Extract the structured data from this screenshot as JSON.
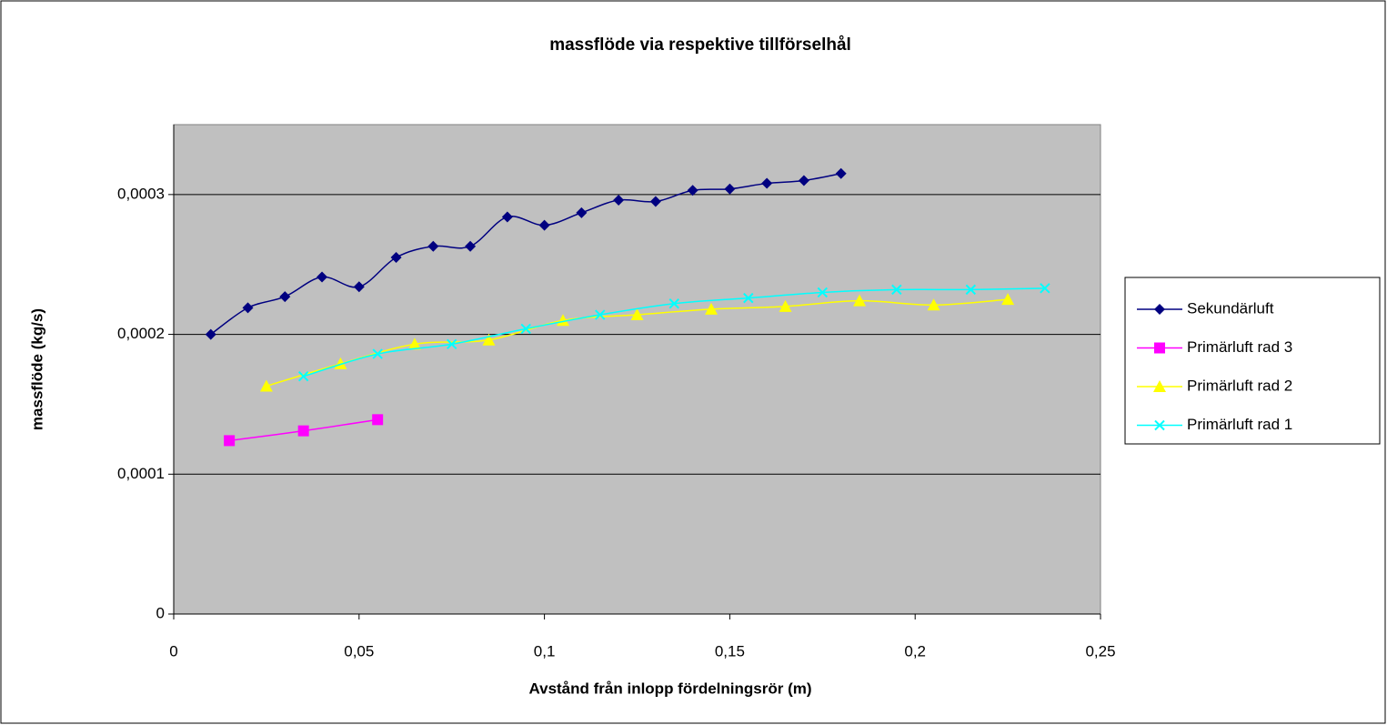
{
  "chart_data": {
    "type": "line",
    "title": "massflöde  via respektive  tillförselhål",
    "x_label": "Avstånd från inlopp fördelningsrör (m)",
    "y_label": "massflöde (kg/s)",
    "xlim": [
      0,
      0.25
    ],
    "xticks": [
      0,
      {
        "value": 0.05,
        "label": "0,05"
      },
      {
        "value": 0.1,
        "label": "0,1"
      },
      {
        "value": 0.15,
        "label": "0,15"
      },
      {
        "value": 0.2,
        "label": "0,2"
      },
      {
        "value": 0.25,
        "label": "0,25"
      }
    ],
    "ylim": [
      0,
      0.00035
    ],
    "yticks": [
      0,
      {
        "value": 0.0001,
        "label": "0,0001"
      },
      {
        "value": 0.0002,
        "label": "0,0002"
      },
      {
        "value": 0.0003,
        "label": "0,0003"
      }
    ],
    "grid": true,
    "smooth": true,
    "legend": "right",
    "background": "#c0c0c0",
    "series": [
      {
        "name": "Sekundärluft",
        "color": "#000080",
        "marker": "diamond",
        "x": [
          0.01,
          0.02,
          0.03,
          0.04,
          0.05,
          0.06,
          0.07,
          0.08,
          0.09,
          0.1,
          0.11,
          0.12,
          0.13,
          0.14,
          0.15,
          0.16,
          0.17,
          0.18
        ],
        "values": [
          0.0002,
          0.000219,
          0.000227,
          0.000241,
          0.000234,
          0.000255,
          0.000263,
          0.000263,
          0.000284,
          0.000278,
          0.000287,
          0.000296,
          0.000295,
          0.000303,
          0.000304,
          0.000308,
          0.00031,
          0.000315
        ]
      },
      {
        "name": "Primärluft rad 3",
        "color": "#ff00ff",
        "marker": "square",
        "x": [
          0.015,
          0.035,
          0.055
        ],
        "values": [
          0.000124,
          0.000131,
          0.000139
        ]
      },
      {
        "name": "Primärluft rad 2",
        "color": "#ffff00",
        "marker": "triangle",
        "x": [
          0.025,
          0.045,
          0.065,
          0.085,
          0.105,
          0.125,
          0.145,
          0.165,
          0.185,
          0.205,
          0.225
        ],
        "values": [
          0.000163,
          0.000179,
          0.000193,
          0.000196,
          0.00021,
          0.000214,
          0.000218,
          0.00022,
          0.000224,
          0.000221,
          0.000225
        ]
      },
      {
        "name": "Primärluft rad 1",
        "color": "#00ffff",
        "marker": "x",
        "x": [
          0.035,
          0.055,
          0.075,
          0.095,
          0.115,
          0.135,
          0.155,
          0.175,
          0.195,
          0.215,
          0.235
        ],
        "values": [
          0.00017,
          0.000186,
          0.000193,
          0.000204,
          0.000214,
          0.000222,
          0.000226,
          0.00023,
          0.000232,
          0.000232,
          0.000233
        ]
      }
    ]
  }
}
